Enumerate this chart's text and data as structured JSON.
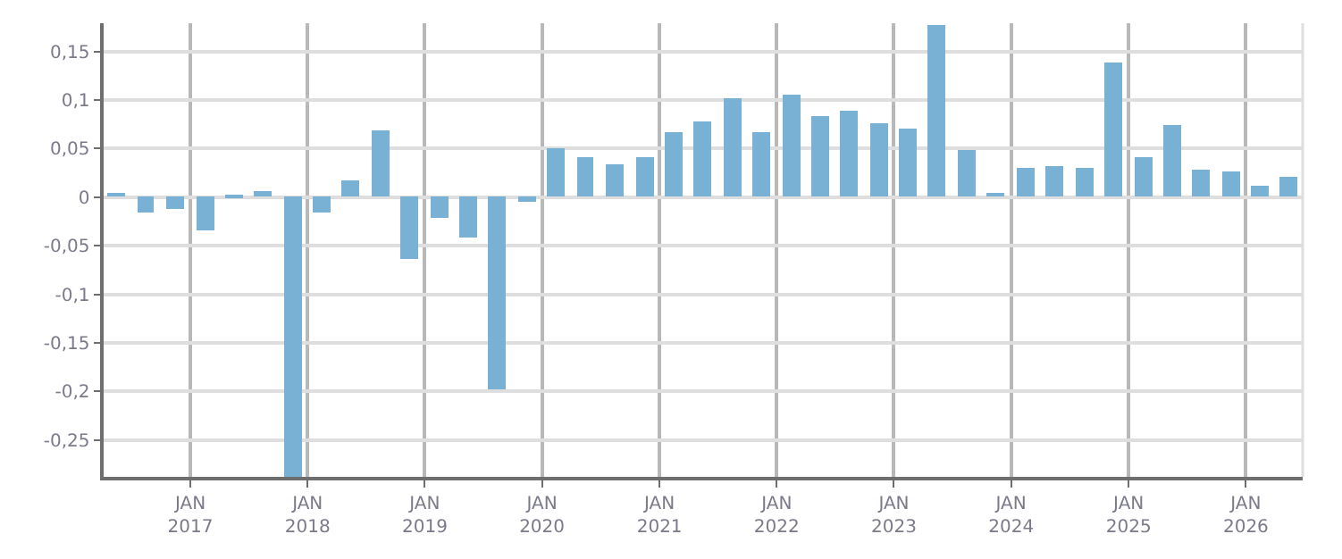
{
  "chart_data": {
    "type": "bar",
    "color": "#78b1d3",
    "x": [
      "2016-05-15",
      "2016-08-15",
      "2016-11-15",
      "2017-02-15",
      "2017-05-15",
      "2017-08-15",
      "2017-11-15",
      "2018-02-15",
      "2018-05-15",
      "2018-08-15",
      "2018-11-15",
      "2019-02-15",
      "2019-05-15",
      "2019-08-15",
      "2019-11-15",
      "2020-02-15",
      "2020-05-15",
      "2020-08-15",
      "2020-11-15",
      "2021-02-15",
      "2021-05-15",
      "2021-08-15",
      "2021-11-15",
      "2022-02-15",
      "2022-05-15",
      "2022-08-15",
      "2022-11-15",
      "2023-02-15",
      "2023-05-15",
      "2023-08-15",
      "2023-11-15",
      "2024-02-15",
      "2024-05-15",
      "2024-08-15",
      "2024-11-15",
      "2025-02-15",
      "2025-05-15",
      "2025-08-15",
      "2025-11-15",
      "2026-02-15",
      "2026-05-15"
    ],
    "values": [
      0.005,
      -0.015,
      -0.012,
      -0.034,
      0.002,
      0.007,
      -0.288,
      -0.015,
      0.018,
      0.069,
      -0.063,
      -0.021,
      -0.042,
      -0.197,
      -0.005,
      0.051,
      0.041,
      0.034,
      0.042,
      0.067,
      0.078,
      0.102,
      0.067,
      0.106,
      0.083,
      0.088,
      0.076,
      0.071,
      0.178,
      0.049,
      0.005,
      0.03,
      0.032,
      0.03,
      0.138,
      0.041,
      0.074,
      0.028,
      0.026,
      0.012,
      0.021
    ],
    "xlim": [
      "2016-04-06",
      "2026-06-27"
    ],
    "xticks": [
      {
        "value": "2017-01-01",
        "label": "JAN\n2017"
      },
      {
        "value": "2018-01-01",
        "label": "JAN\n2018"
      },
      {
        "value": "2019-01-01",
        "label": "JAN\n2019"
      },
      {
        "value": "2020-01-01",
        "label": "JAN\n2020"
      },
      {
        "value": "2021-01-01",
        "label": "JAN\n2021"
      },
      {
        "value": "2022-01-01",
        "label": "JAN\n2022"
      },
      {
        "value": "2023-01-01",
        "label": "JAN\n2023"
      },
      {
        "value": "2024-01-01",
        "label": "JAN\n2024"
      },
      {
        "value": "2025-01-01",
        "label": "JAN\n2025"
      },
      {
        "value": "2026-01-01",
        "label": "JAN\n2026"
      }
    ],
    "ylim": [
      -0.288,
      0.179
    ],
    "yticks": [
      {
        "value": -0.25,
        "label": "-0,25"
      },
      {
        "value": -0.2,
        "label": "-0,2"
      },
      {
        "value": -0.15,
        "label": "-0,15"
      },
      {
        "value": -0.1,
        "label": "-0,1"
      },
      {
        "value": -0.05,
        "label": "-0,05"
      },
      {
        "value": 0,
        "label": "0"
      },
      {
        "value": 0.05,
        "label": "0,05"
      },
      {
        "value": 0.1,
        "label": "0,1"
      },
      {
        "value": 0.15,
        "label": "0,15"
      }
    ],
    "grid": true,
    "legend": false
  }
}
